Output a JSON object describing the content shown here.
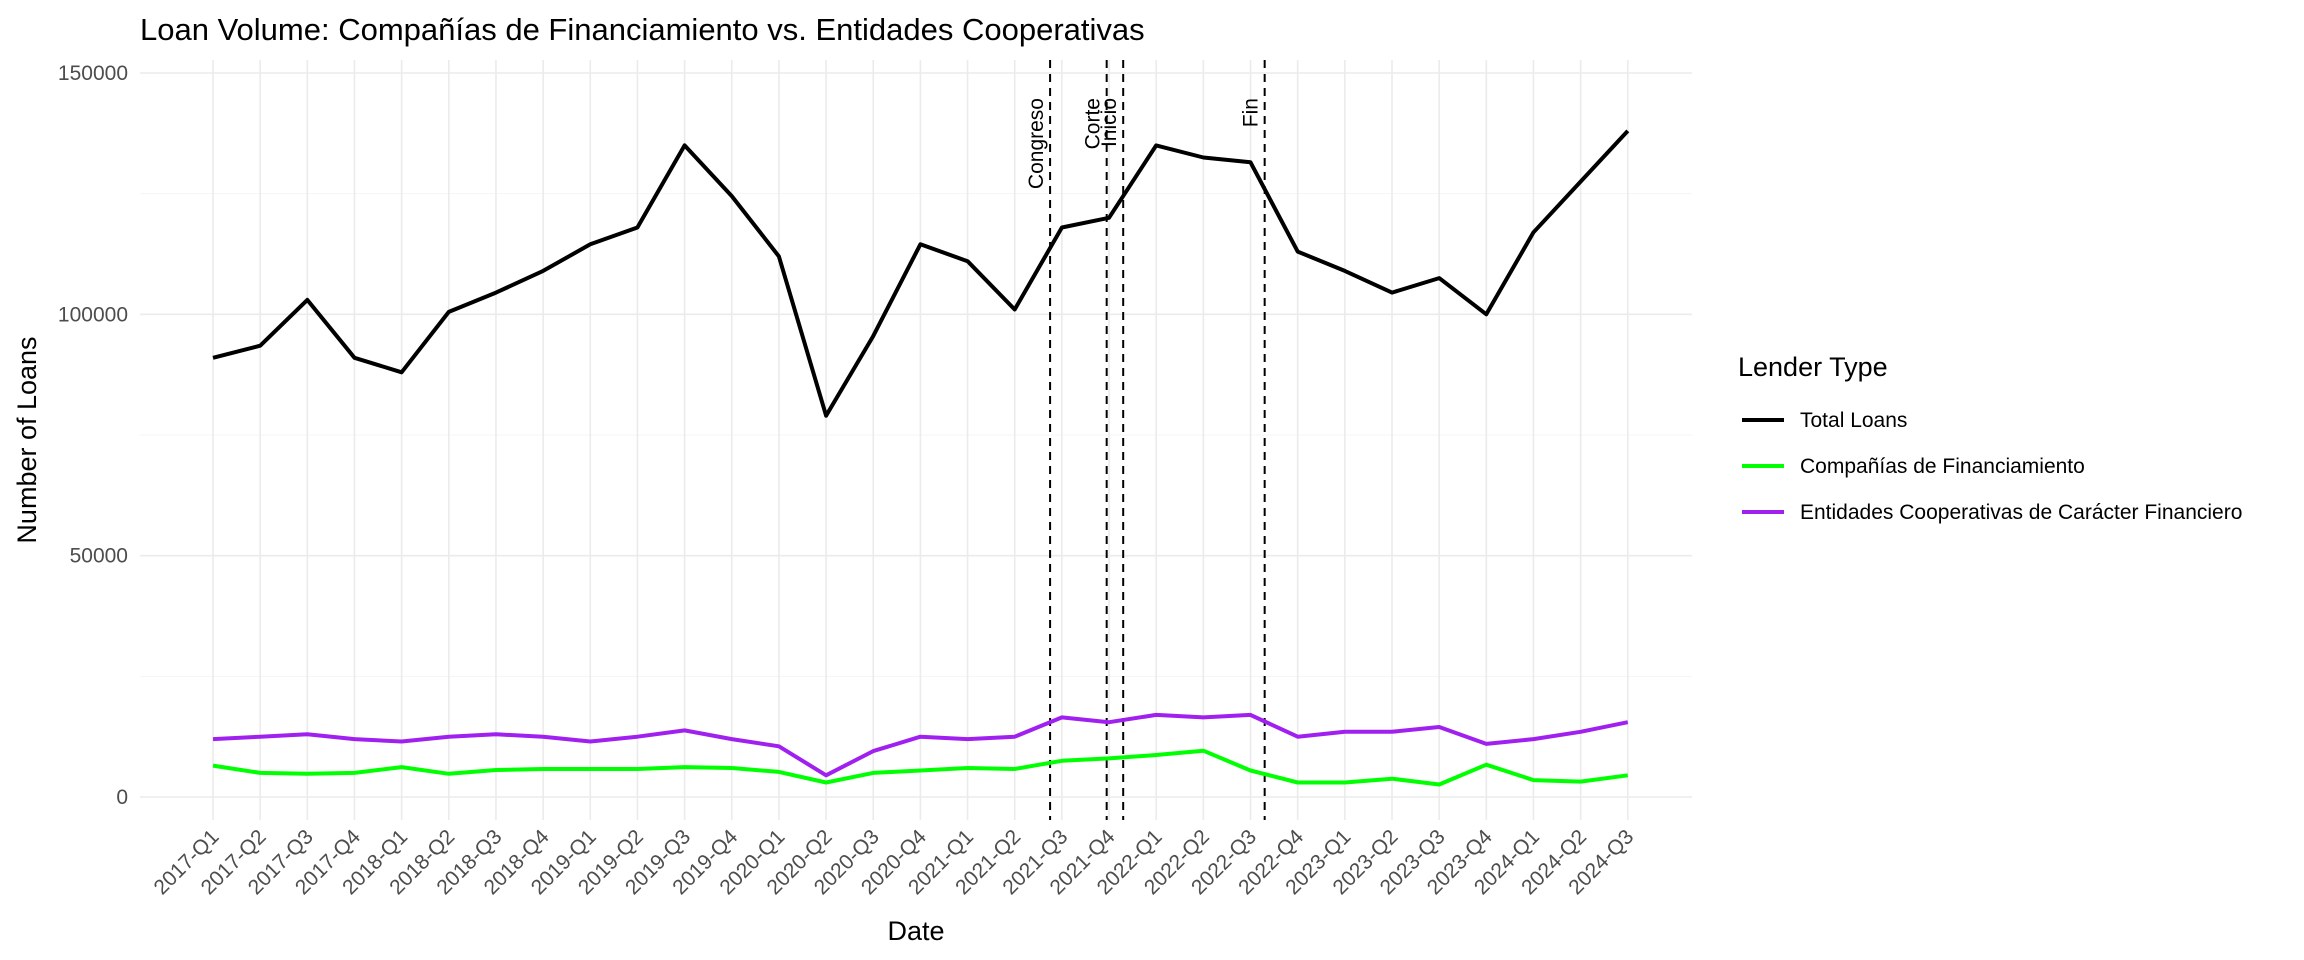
{
  "chart_data": {
    "type": "line",
    "title": "Loan Volume: Compañías de Financiamiento vs. Entidades Cooperativas",
    "xlabel": "Date",
    "ylabel": "Number of Loans",
    "ylim": [
      -4000,
      152000
    ],
    "yticks": [
      0,
      50000,
      100000,
      150000
    ],
    "ytick_labels": [
      "0",
      "50000",
      "100000",
      "150000"
    ],
    "grid": true,
    "legend": {
      "title": "Lender Type",
      "position": "right"
    },
    "categories": [
      "2017-Q1",
      "2017-Q2",
      "2017-Q3",
      "2017-Q4",
      "2018-Q1",
      "2018-Q2",
      "2018-Q3",
      "2018-Q4",
      "2019-Q1",
      "2019-Q2",
      "2019-Q3",
      "2019-Q4",
      "2020-Q1",
      "2020-Q2",
      "2020-Q3",
      "2020-Q4",
      "2021-Q1",
      "2021-Q2",
      "2021-Q3",
      "2021-Q4",
      "2022-Q1",
      "2022-Q2",
      "2022-Q3",
      "2022-Q4",
      "2023-Q1",
      "2023-Q2",
      "2023-Q3",
      "2023-Q4",
      "2024-Q1",
      "2024-Q2",
      "2024-Q3"
    ],
    "series": [
      {
        "name": "Total Loans",
        "color": "#000000",
        "values": [
          91000,
          93500,
          103000,
          91000,
          88000,
          100500,
          104500,
          109000,
          114500,
          118000,
          135000,
          124500,
          112000,
          79000,
          95500,
          114500,
          111000,
          101000,
          118000,
          120000,
          135000,
          132500,
          131500,
          113000,
          109000,
          104500,
          107500,
          100000,
          117000,
          127500,
          138000
        ]
      },
      {
        "name": "Compañías de Financiamiento",
        "color": "#00ff00",
        "values": [
          6500,
          5000,
          4800,
          5000,
          6200,
          4800,
          5600,
          5800,
          5800,
          5800,
          6200,
          6000,
          5200,
          3000,
          5000,
          5500,
          6000,
          5800,
          7500,
          8000,
          8700,
          9600,
          5500,
          3000,
          3000,
          3800,
          2600,
          6700,
          3500,
          3200,
          4500
        ]
      },
      {
        "name": "Entidades Cooperativas de Carácter Financiero",
        "color": "#a020f0",
        "values": [
          12000,
          12500,
          13000,
          12000,
          11500,
          12500,
          13000,
          12500,
          11500,
          12500,
          13800,
          12000,
          10500,
          4500,
          9500,
          12500,
          12000,
          12500,
          16500,
          15500,
          17000,
          16500,
          17000,
          12500,
          13500,
          13500,
          14500,
          11000,
          12000,
          13500,
          15500
        ]
      }
    ],
    "vlines": [
      {
        "label": "Congreso",
        "x": 17.75
      },
      {
        "label": "Corte",
        "x": 18.95
      },
      {
        "label": "Inicio",
        "x": 19.3
      },
      {
        "label": "Fin",
        "x": 22.3
      }
    ]
  }
}
